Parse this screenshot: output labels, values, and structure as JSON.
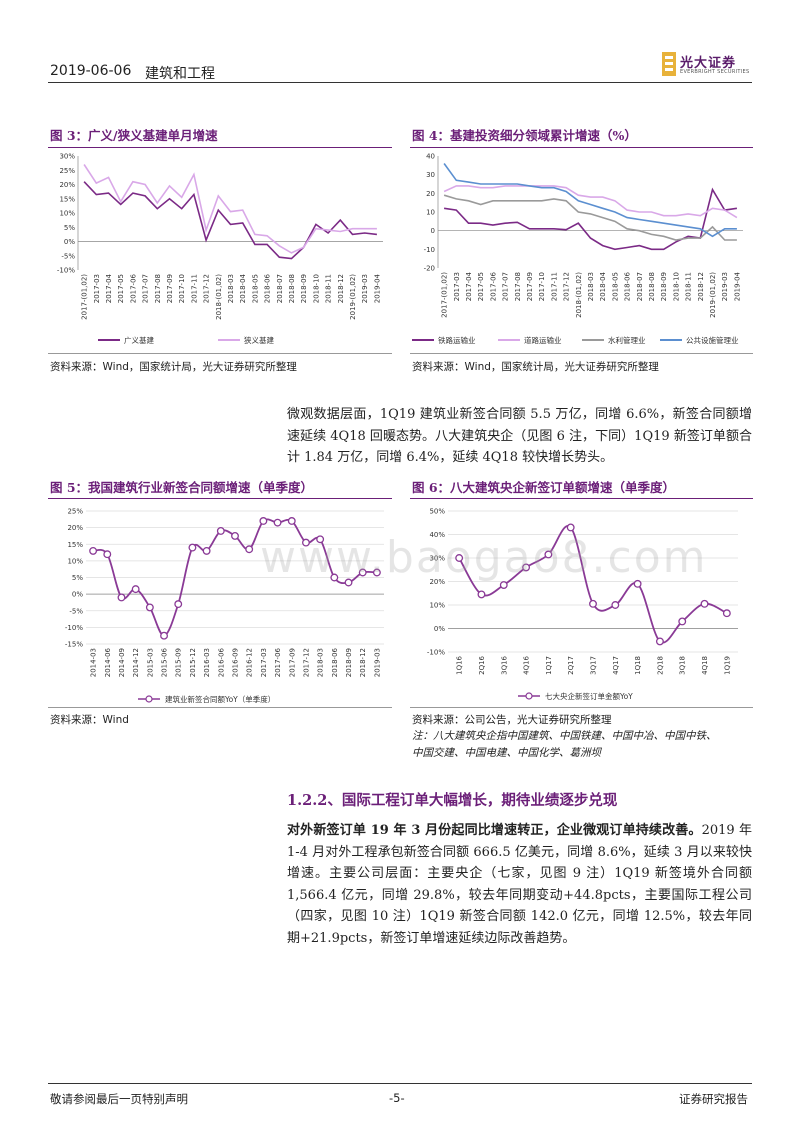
{
  "header": {
    "date": "2019-06-06",
    "sector": "建筑和工程",
    "logo_cn": "光大证券",
    "logo_en": "EVERBRIGHT SECURITIES"
  },
  "fig3": {
    "title": "图 3：广义/狭义基建单月增速",
    "source": "资料来源：Wind，国家统计局，光大证券研究所整理"
  },
  "fig4": {
    "title": "图 4：基建投资细分领域累计增速（%）",
    "source": "资料来源：Wind，国家统计局，光大证券研究所整理"
  },
  "fig5": {
    "title": "图 5：我国建筑行业新签合同额增速（单季度）",
    "source": "资料来源：Wind"
  },
  "fig6": {
    "title": "图 6：八大建筑央企新签订单额增速（单季度）",
    "source": "资料来源：公司公告，光大证券研究所整理",
    "note1": "注：八大建筑央企指中国建筑、中国铁建、中国中冶、中国中铁、",
    "note2": "中国交建、中国电建、中国化学、葛洲坝"
  },
  "para1": "微观数据层面，1Q19 建筑业新签合同额 5.5 万亿，同增 6.6%，新签合同额增速延续 4Q18 回暖态势。八大建筑央企（见图 6 注，下同）1Q19 新签订单额合计 1.84 万亿，同增 6.4%，延续 4Q18 较快增长势头。",
  "section_title": "1.2.2、国际工程订单大幅增长，期待业绩逐步兑现",
  "para2_bold": "对外新签订单 19 年 3 月份起同比增速转正，企业微观订单持续改善。",
  "para2_rest": "2019 年 1-4 月对外工程承包新签合同额 666.5 亿美元，同增 8.6%，延续 3 月以来较快增速。主要公司层面：主要央企（七家，见图 9 注）1Q19 新签境外合同额 1,566.4 亿元，同增 29.8%，较去年同期变动+44.8pcts，主要国际工程公司（四家，见图 10 注）1Q19 新签合同额 142.0 亿元，同增 12.5%，较去年同期+21.9pcts，新签订单增速延续边际改善趋势。",
  "watermark": "www.baogao8.com",
  "footer": {
    "left": "敬请参阅最后一页特别声明",
    "center": "-5-",
    "right": "证券研究报告"
  },
  "chart_data": [
    {
      "type": "line",
      "title": "图 3：广义/狭义基建单月增速",
      "x": [
        "2017-(01,02)",
        "2017-03",
        "2017-04",
        "2017-05",
        "2017-06",
        "2017-07",
        "2017-08",
        "2017-09",
        "2017-10",
        "2017-11",
        "2017-12",
        "2018-(01,02)",
        "2018-03",
        "2018-04",
        "2018-05",
        "2018-06",
        "2018-07",
        "2018-08",
        "2018-09",
        "2018-10",
        "2018-11",
        "2018-12",
        "2019-(01,02)",
        "2019-03",
        "2019-04"
      ],
      "ylim": [
        -10,
        30
      ],
      "yticks": [
        "-10%",
        "-5%",
        "0%",
        "5%",
        "10%",
        "15%",
        "20%",
        "25%",
        "30%"
      ],
      "series": [
        {
          "name": "广义基建",
          "color": "#7b2a86",
          "values": [
            21,
            16.5,
            17,
            13,
            17,
            16,
            11.5,
            15,
            11.5,
            16.5,
            0.5,
            11,
            6,
            6.5,
            -1,
            -1,
            -5.5,
            -6,
            -2,
            6,
            3,
            7.5,
            2.5,
            3,
            2.5
          ]
        },
        {
          "name": "狭义基建",
          "color": "#d9a8e8",
          "values": [
            27,
            20.5,
            22.5,
            14,
            21,
            20,
            13.5,
            19.5,
            15.5,
            23.5,
            4,
            16,
            10.5,
            11,
            2.5,
            2,
            -1.5,
            -4,
            -2,
            4.5,
            4,
            3.5,
            4.5,
            4.5,
            4.5
          ]
        }
      ]
    },
    {
      "type": "line",
      "title": "图 4：基建投资细分领域累计增速（%）",
      "x": [
        "2017-(01,02)",
        "2017-03",
        "2017-04",
        "2017-05",
        "2017-06",
        "2017-07",
        "2017-08",
        "2017-09",
        "2017-10",
        "2017-11",
        "2017-12",
        "2018-(01,02)",
        "2018-03",
        "2018-04",
        "2018-05",
        "2018-06",
        "2018-07",
        "2018-08",
        "2018-09",
        "2018-10",
        "2018-11",
        "2018-12",
        "2019-(01,02)",
        "2019-03",
        "2019-04"
      ],
      "ylim": [
        -20,
        40
      ],
      "yticks": [
        "-20",
        "-10",
        "0",
        "10",
        "20",
        "30",
        "40"
      ],
      "series": [
        {
          "name": "铁路运输业",
          "color": "#7b2a86",
          "values": [
            12,
            11,
            4,
            4,
            3,
            4,
            4.5,
            1,
            1,
            1,
            0.5,
            4,
            -4,
            -8,
            -10,
            -9,
            -8,
            -10,
            -10,
            -6,
            -3,
            -4,
            22,
            11,
            12
          ]
        },
        {
          "name": "道路运输业",
          "color": "#d9a8e8",
          "values": [
            21,
            24,
            24,
            23,
            23,
            24,
            24,
            24,
            24,
            24,
            23,
            19,
            18,
            18,
            16,
            11,
            10,
            10,
            8,
            8,
            9,
            8,
            12,
            11,
            7
          ]
        },
        {
          "name": "水利管理业",
          "color": "#9a9a9a",
          "values": [
            19,
            17,
            16,
            14,
            16,
            16,
            16,
            16,
            16,
            17,
            16,
            10,
            9,
            7,
            5,
            1,
            0,
            -2,
            -3,
            -5,
            -4,
            -4,
            2,
            -5,
            -5
          ]
        },
        {
          "name": "公共设施管理业",
          "color": "#5b8fd0",
          "values": [
            36,
            27,
            26,
            25,
            25,
            25,
            25,
            24,
            23,
            23,
            21,
            16,
            14,
            12,
            10,
            7,
            6,
            5,
            4,
            3,
            2,
            1,
            -3,
            1,
            1
          ]
        }
      ]
    },
    {
      "type": "line",
      "title": "图 5：我国建筑行业新签合同额增速（单季度）",
      "x": [
        "2014-03",
        "2014-06",
        "2014-09",
        "2014-12",
        "2015-03",
        "2015-06",
        "2015-09",
        "2015-12",
        "2016-03",
        "2016-06",
        "2016-09",
        "2016-12",
        "2017-03",
        "2017-06",
        "2017-09",
        "2017-12",
        "2018-03",
        "2018-06",
        "2018-09",
        "2018-12",
        "2019-03"
      ],
      "ylim": [
        -15,
        25
      ],
      "yticks": [
        "-15%",
        "-10%",
        "-5%",
        "0%",
        "5%",
        "10%",
        "15%",
        "20%",
        "25%"
      ],
      "series": [
        {
          "name": "建筑业新签合同额YoY（单季度）",
          "color": "#8a3a96",
          "values": [
            13,
            12,
            -1,
            1.5,
            -4,
            -12.5,
            -3,
            14,
            13,
            19,
            17.5,
            13.5,
            22,
            21.5,
            22,
            15.5,
            16.5,
            5,
            3.5,
            6.5,
            6.5
          ]
        }
      ]
    },
    {
      "type": "line",
      "title": "图 6：八大建筑央企新签订单额增速（单季度）",
      "x": [
        "1Q16",
        "2Q16",
        "3Q16",
        "4Q16",
        "1Q17",
        "2Q17",
        "3Q17",
        "4Q17",
        "1Q18",
        "2Q18",
        "3Q18",
        "4Q18",
        "1Q19"
      ],
      "ylim": [
        -10,
        50
      ],
      "yticks": [
        "-10%",
        "0%",
        "10%",
        "20%",
        "30%",
        "40%",
        "50%"
      ],
      "series": [
        {
          "name": "七大央企新签订单金额YoY",
          "color": "#8a3a96",
          "values": [
            30,
            14.5,
            18.5,
            26,
            31.5,
            43,
            10.5,
            10,
            19,
            -5.5,
            3,
            10.5,
            6.5
          ]
        }
      ]
    }
  ]
}
